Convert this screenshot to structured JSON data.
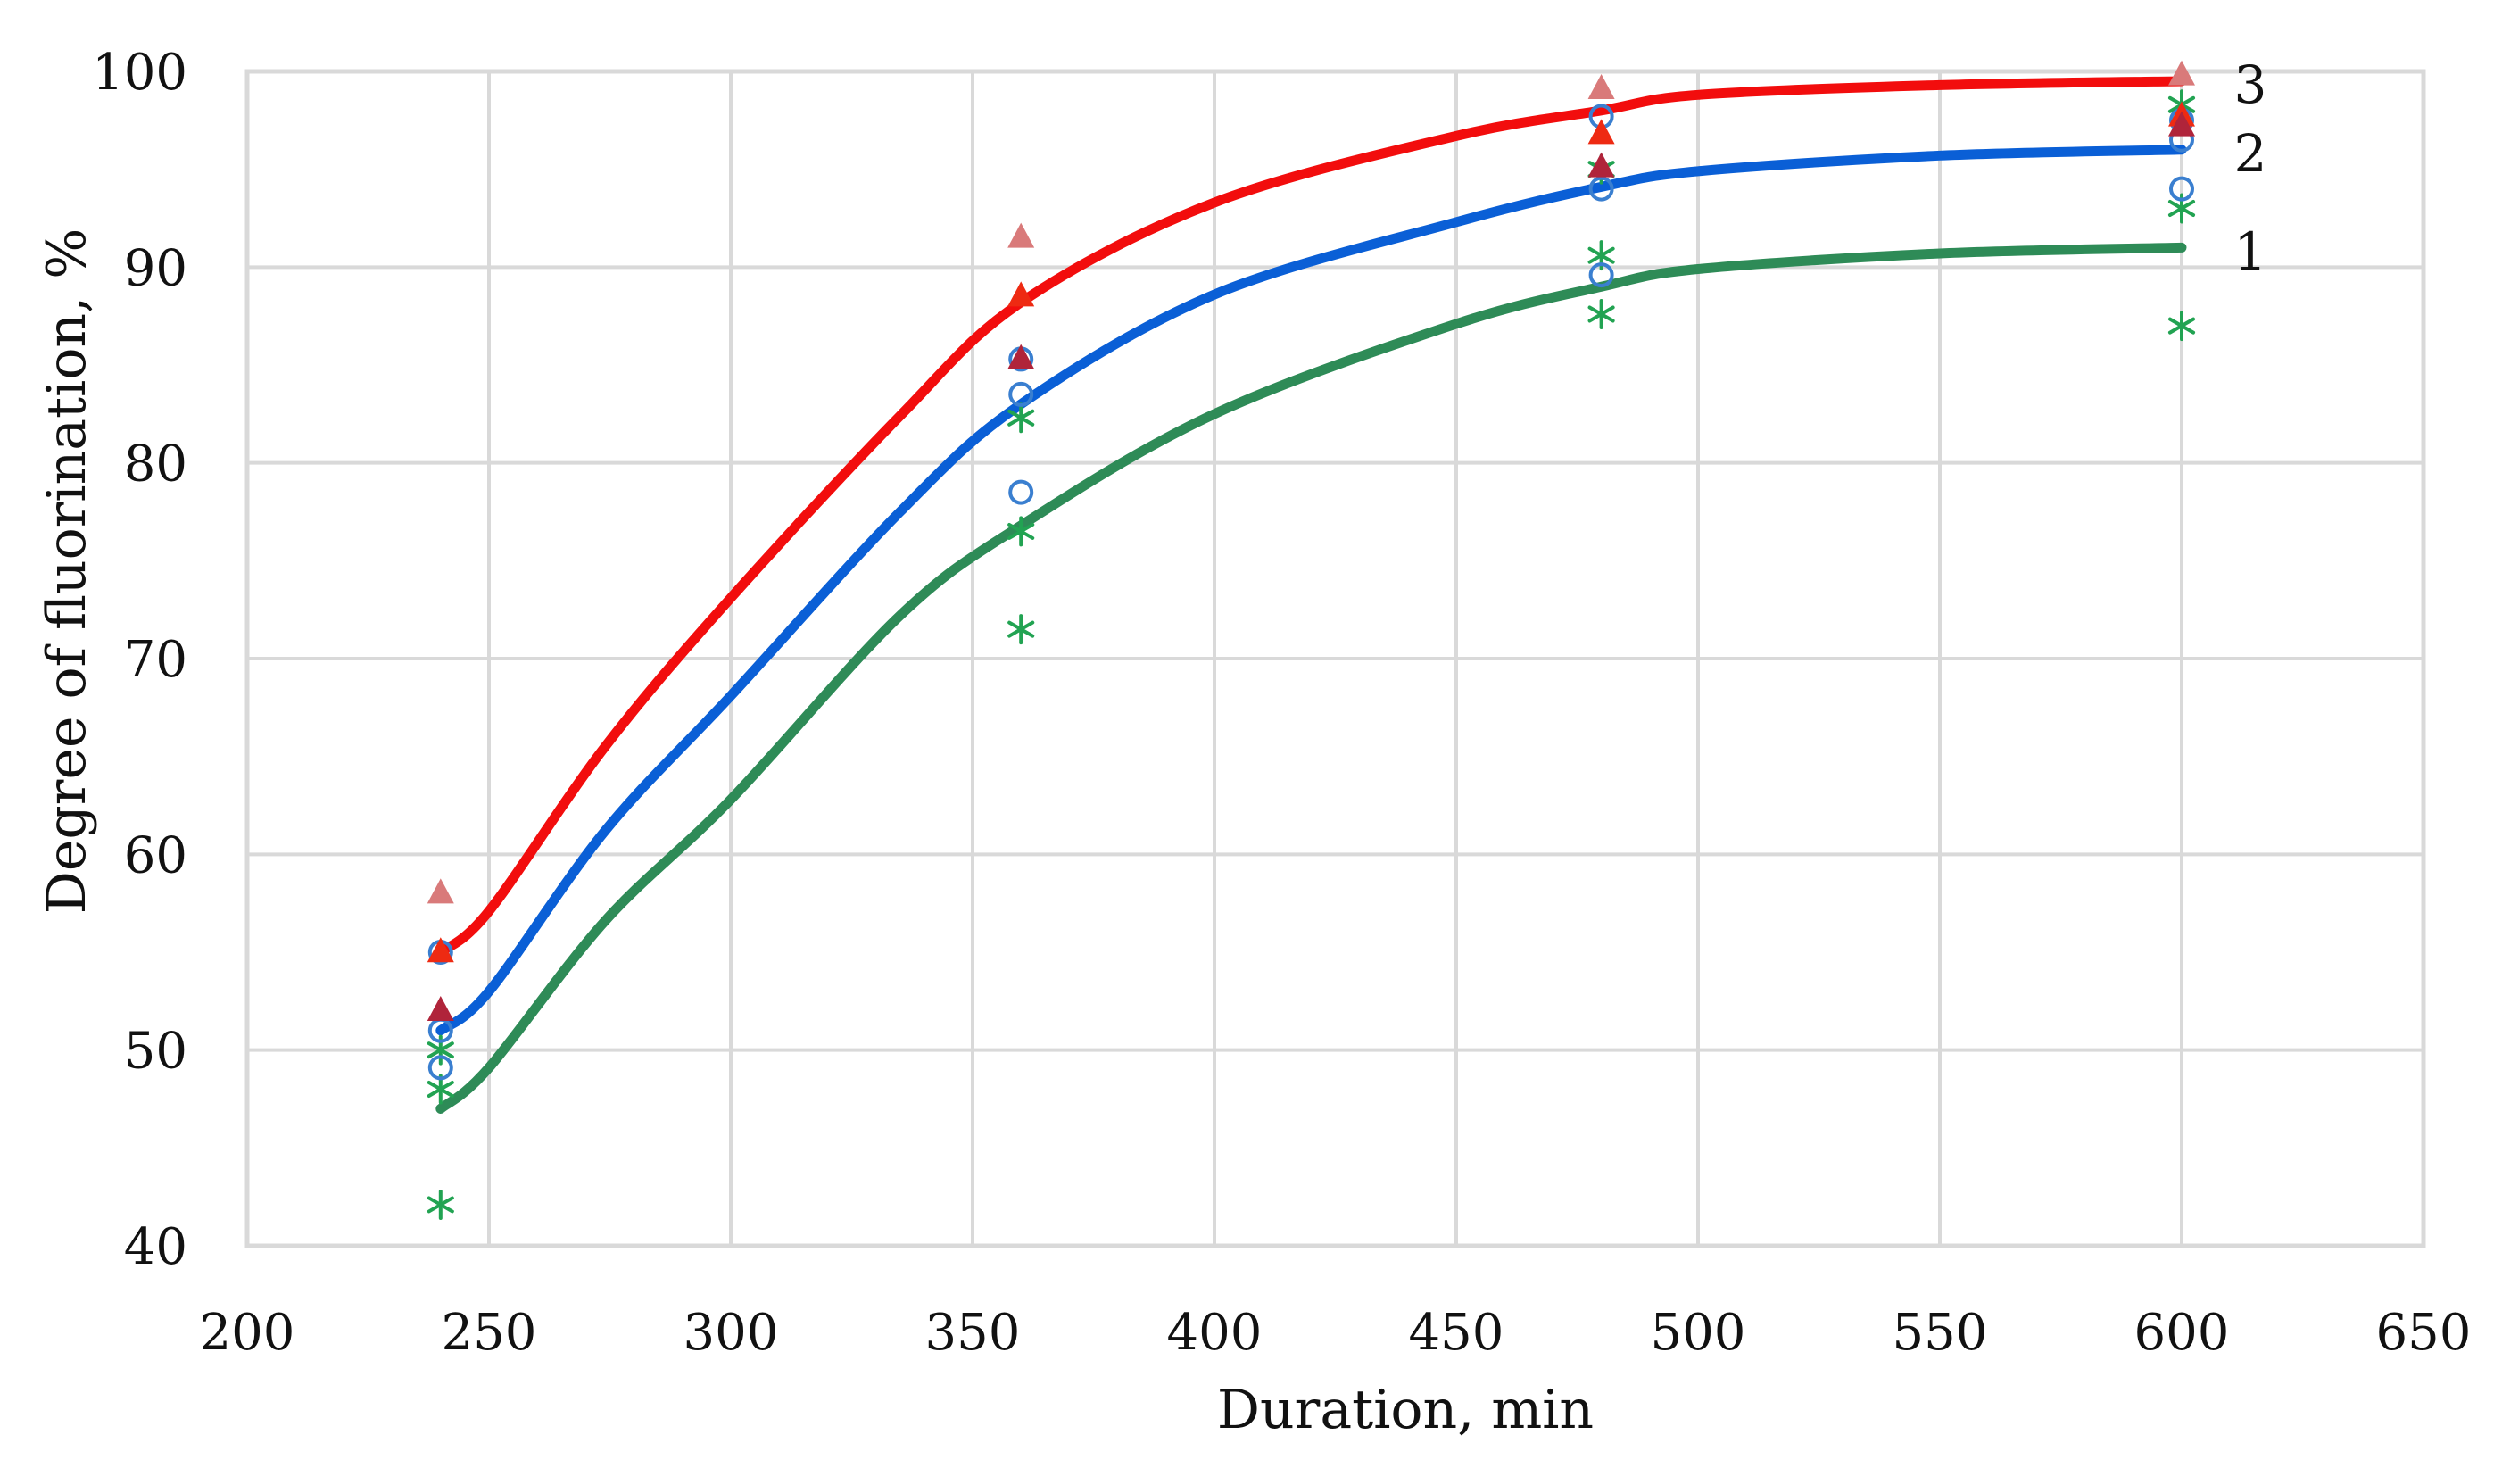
{
  "chart_data": {
    "type": "scatter",
    "title": "",
    "xlabel": "Duration, min",
    "ylabel": "Degree of fluorination, %",
    "xlim": [
      200,
      650
    ],
    "ylim": [
      40,
      100
    ],
    "xticks": [
      200,
      250,
      300,
      350,
      400,
      450,
      500,
      550,
      600,
      650
    ],
    "yticks": [
      40,
      50,
      60,
      70,
      80,
      90,
      100
    ],
    "grid": true,
    "legend": "none (curves labeled 1, 2, 3 at right end)",
    "curve_labels": [
      {
        "text": "3",
        "series": "3",
        "y_value": 99.5
      },
      {
        "text": "2",
        "series": "2",
        "y_value": 96
      },
      {
        "text": "1",
        "series": "1",
        "y_value": 91
      }
    ],
    "series": [
      {
        "name": "1",
        "color": "#2e8b57",
        "marker": "asterisk",
        "marker_color": "#22a352",
        "points": [
          {
            "x": 240,
            "y": 50.0
          },
          {
            "x": 240,
            "y": 48.0
          },
          {
            "x": 240,
            "y": 42.1
          },
          {
            "x": 360,
            "y": 82.3
          },
          {
            "x": 360,
            "y": 76.5
          },
          {
            "x": 360,
            "y": 71.5
          },
          {
            "x": 480,
            "y": 95.0
          },
          {
            "x": 480,
            "y": 90.6
          },
          {
            "x": 480,
            "y": 87.6
          },
          {
            "x": 600,
            "y": 98.3
          },
          {
            "x": 600,
            "y": 93.0
          },
          {
            "x": 600,
            "y": 87.0
          }
        ],
        "fit_curve": {
          "x": [
            240,
            250,
            274,
            300,
            335,
            360,
            400,
            450,
            480,
            500,
            550,
            600
          ],
          "y": [
            47.0,
            49.1,
            56.6,
            62.8,
            72.2,
            76.8,
            82.5,
            87.1,
            89.0,
            89.9,
            90.7,
            91.0
          ]
        }
      },
      {
        "name": "2",
        "color": "#0a5fd6",
        "marker": "circle",
        "marker_color": "#3a7fd0",
        "points": [
          {
            "x": 240,
            "y": 55.0
          },
          {
            "x": 240,
            "y": 51.0
          },
          {
            "x": 240,
            "y": 49.1
          },
          {
            "x": 360,
            "y": 85.3
          },
          {
            "x": 360,
            "y": 83.5
          },
          {
            "x": 360,
            "y": 78.5
          },
          {
            "x": 480,
            "y": 97.7
          },
          {
            "x": 480,
            "y": 94.0
          },
          {
            "x": 480,
            "y": 89.6
          },
          {
            "x": 600,
            "y": 97.5
          },
          {
            "x": 600,
            "y": 96.5
          },
          {
            "x": 600,
            "y": 94.0
          }
        ],
        "fit_curve": {
          "x": [
            240,
            250,
            274,
            300,
            335,
            360,
            400,
            450,
            480,
            500,
            550,
            600
          ],
          "y": [
            51.0,
            53.0,
            61.2,
            68.1,
            77.5,
            83.0,
            88.6,
            92.3,
            94.1,
            94.9,
            95.7,
            96.0
          ]
        }
      },
      {
        "name": "3",
        "color": "#f20d0d",
        "marker": "triangle",
        "marker_colors": [
          "#d97a7a",
          "#ee2a12",
          "#b0243a"
        ],
        "points": [
          {
            "x": 240,
            "y": 58.0
          },
          {
            "x": 240,
            "y": 55.0
          },
          {
            "x": 240,
            "y": 52.0
          },
          {
            "x": 360,
            "y": 91.5
          },
          {
            "x": 360,
            "y": 88.5
          },
          {
            "x": 360,
            "y": 85.3
          },
          {
            "x": 480,
            "y": 99.1
          },
          {
            "x": 480,
            "y": 96.8
          },
          {
            "x": 480,
            "y": 95.1
          },
          {
            "x": 600,
            "y": 99.8
          },
          {
            "x": 600,
            "y": 97.7
          },
          {
            "x": 600,
            "y": 97.2
          }
        ],
        "fit_curve": {
          "x": [
            240,
            250,
            274,
            300,
            335,
            360,
            400,
            450,
            480,
            500,
            550,
            600
          ],
          "y": [
            55.0,
            57.1,
            65.5,
            73.1,
            82.4,
            88.2,
            93.3,
            96.7,
            98.0,
            98.8,
            99.3,
            99.5
          ]
        }
      }
    ]
  },
  "colors": {
    "grid": "#d9d9d9",
    "axis_text": "#111111",
    "background": "#ffffff"
  }
}
